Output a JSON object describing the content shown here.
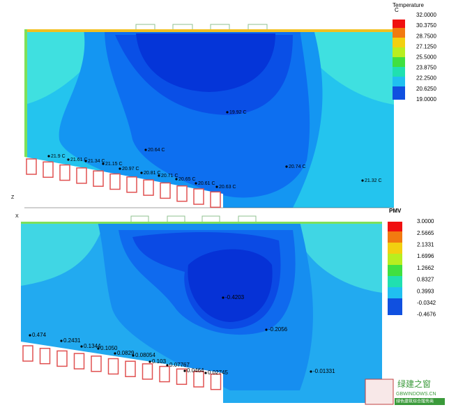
{
  "top": {
    "legend_title": "Temperature",
    "legend_unit": "C",
    "legend_ticks": [
      "32.0000",
      "30.3750",
      "28.7500",
      "27.1250",
      "25.5000",
      "23.8750",
      "22.2500",
      "20.6250",
      "19.0000"
    ],
    "probes": [
      "21.9 C",
      "21.61 C",
      "21.34 C",
      "21.15 C",
      "20.97 C",
      "20.81 C",
      "20.71 C",
      "20.65 C",
      "20.61 C",
      "20.63 C",
      "20.64 C",
      "19.92 C",
      "20.74 C",
      "21.32 C"
    ]
  },
  "bottom": {
    "legend_title": "PMV",
    "legend_ticks": [
      "3.0000",
      "2.5665",
      "2.1331",
      "1.6996",
      "1.2662",
      "0.8327",
      "0.3993",
      "-0.0342",
      "-0.4676"
    ],
    "probes": [
      "0.474",
      "0.2431",
      "0.1344",
      "0.1050",
      "0.0829",
      "0.08054",
      "0.103",
      "0.07767",
      "0.0464",
      "0.02745",
      "-0.4203",
      "-0.2056",
      "-0.01331"
    ]
  },
  "axis_labels": [
    "Z",
    "X"
  ],
  "watermark": {
    "name": "绿建之窗",
    "site": "GBWINDOWS.CN",
    "tagline": "绿色建筑综合服务商"
  }
}
